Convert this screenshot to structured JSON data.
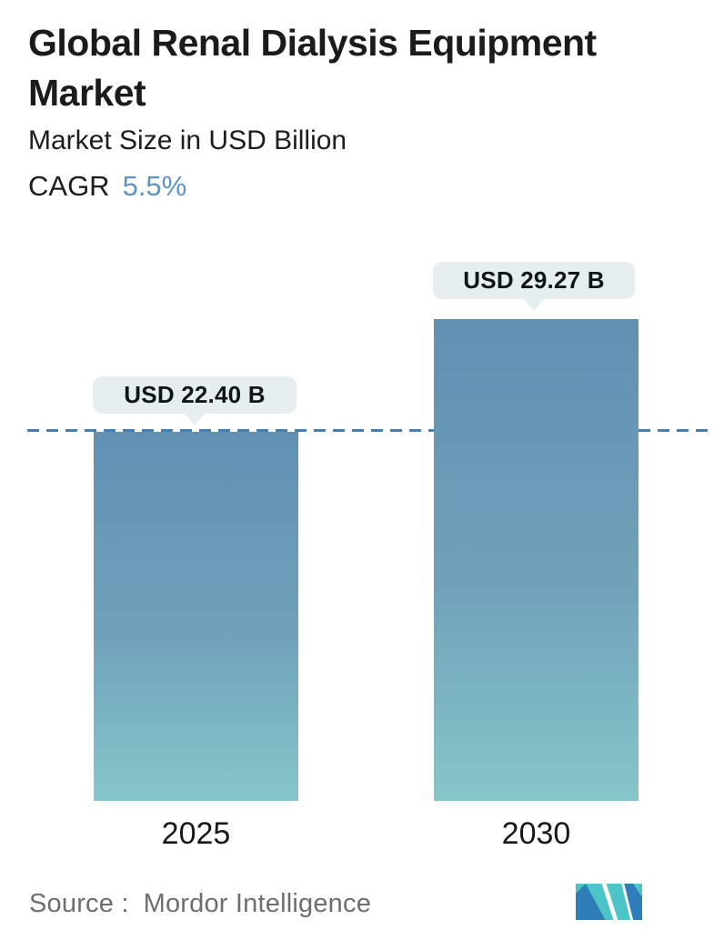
{
  "header": {
    "title_line1": "Global Renal Dialysis Equipment",
    "title_line2": "Market",
    "subtitle": "Market Size in USD Billion",
    "cagr_label": "CAGR",
    "cagr_value": "5.5%"
  },
  "chart_data": {
    "type": "bar",
    "title": "Global Renal Dialysis Equipment Market",
    "subtitle": "Market Size in USD Billion",
    "unit": "USD Billion",
    "cagr_percent": 5.5,
    "categories": [
      "2025",
      "2030"
    ],
    "values": [
      22.4,
      29.27
    ],
    "value_labels": [
      "USD 22.40 B",
      "USD 29.27 B"
    ],
    "ylim": [
      0,
      32
    ],
    "grid": false,
    "legend": "none",
    "reference_line": {
      "style": "dashed",
      "at_value": 22.4,
      "color": "#4a7fab"
    },
    "bar_gradient_top": "#6190b3",
    "bar_gradient_bottom": "#85c6ca"
  },
  "footer": {
    "source_label": "Source :",
    "source_value": "Mordor Intelligence",
    "logo_name": "mordor-intelligence-logo"
  },
  "colors": {
    "accent_blue": "#5e93c5",
    "dashed_line": "#4a7fab",
    "bubble_bg": "#e7eef2",
    "logo_teal": "#4dc4c7",
    "logo_blue": "#2e7cb8",
    "text_dark": "#1b1b1b",
    "text_gray": "#6e6e6e"
  }
}
